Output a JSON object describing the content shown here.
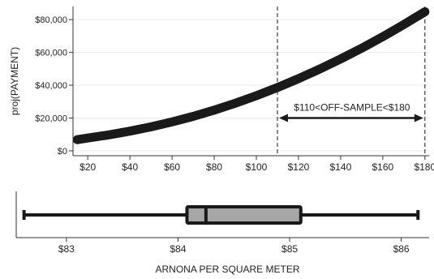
{
  "chart_data": [
    {
      "type": "line",
      "ylabel": "proj(PAYMENT)",
      "xlim": [
        13,
        182
      ],
      "ylim": [
        -3000,
        88000
      ],
      "x_ticks": [
        20,
        40,
        60,
        80,
        100,
        120,
        140,
        160,
        180
      ],
      "x_tick_labels": [
        "$20",
        "$40",
        "$60",
        "$80",
        "$100",
        "$120",
        "$140",
        "$160",
        "$180"
      ],
      "y_ticks": [
        0,
        20000,
        40000,
        60000,
        80000
      ],
      "y_tick_labels": [
        "$0",
        "$20,000",
        "$40,000",
        "$60,000",
        "$80,000"
      ],
      "series": [
        {
          "x": [
            15,
            20,
            30,
            40,
            50,
            60,
            70,
            80,
            90,
            100,
            110,
            120,
            130,
            140,
            150,
            160,
            170,
            180
          ],
          "y": [
            6800,
            7800,
            9700,
            12000,
            14600,
            17600,
            21000,
            24800,
            29000,
            33600,
            38600,
            44000,
            49800,
            56000,
            62600,
            69600,
            77000,
            84800
          ]
        }
      ],
      "vlines": [
        110,
        180
      ],
      "annotation": {
        "text": "$110<OFF-SAMPLE<$180",
        "x_from": 110,
        "x_to": 180,
        "y": 20000
      }
    },
    {
      "type": "box",
      "xlabel": "ARNONA PER SQUARE METER",
      "xlim": [
        82.55,
        86.25
      ],
      "x_ticks": [
        83,
        84,
        85,
        86
      ],
      "x_tick_labels": [
        "$83",
        "$84",
        "$85",
        "$86"
      ],
      "min": 82.62,
      "q1": 84.08,
      "median": 84.25,
      "q3": 85.1,
      "max": 86.15
    }
  ],
  "colors": {
    "curve": "#1a1a1a",
    "box_fill": "#a6a6a6",
    "lines": "#1a1a1a",
    "grid": "#ebebeb"
  }
}
